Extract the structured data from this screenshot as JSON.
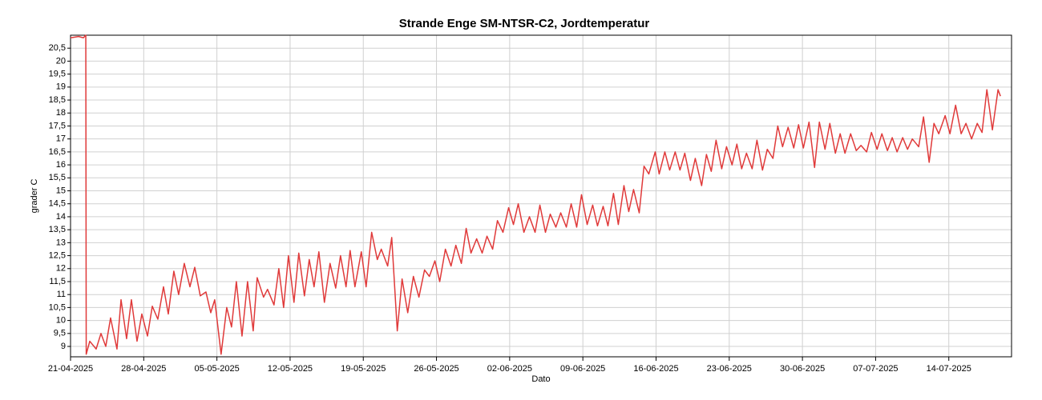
{
  "chart_data": {
    "type": "line",
    "title": "Strande Enge SM-NTSR-C2, Jordtemperatur",
    "x_label": "Dato",
    "y_label": "grader C",
    "xlim": [
      0,
      90
    ],
    "ylim": [
      8.6,
      21.0
    ],
    "xticks": [
      {
        "value": 0,
        "label": "21-04-2025"
      },
      {
        "value": 7,
        "label": "28-04-2025"
      },
      {
        "value": 14,
        "label": "05-05-2025"
      },
      {
        "value": 21,
        "label": "12-05-2025"
      },
      {
        "value": 28,
        "label": "19-05-2025"
      },
      {
        "value": 35,
        "label": "26-05-2025"
      },
      {
        "value": 42,
        "label": "02-06-2025"
      },
      {
        "value": 49,
        "label": "09-06-2025"
      },
      {
        "value": 56,
        "label": "16-06-2025"
      },
      {
        "value": 63,
        "label": "23-06-2025"
      },
      {
        "value": 70,
        "label": "30-06-2025"
      },
      {
        "value": 77,
        "label": "07-07-2025"
      },
      {
        "value": 84,
        "label": "14-07-2025"
      }
    ],
    "yticks": [
      9,
      {
        "value": 9.5,
        "label": "9,5"
      },
      10,
      {
        "value": 10.5,
        "label": "10,5"
      },
      11,
      {
        "value": 11.5,
        "label": "11,5"
      },
      12,
      {
        "value": 12.5,
        "label": "12,5"
      },
      13,
      {
        "value": 13.5,
        "label": "13,5"
      },
      14,
      {
        "value": 14.5,
        "label": "14,5"
      },
      15,
      {
        "value": 15.5,
        "label": "15,5"
      },
      16,
      {
        "value": 16.5,
        "label": "16,5"
      },
      17,
      {
        "value": 17.5,
        "label": "17,5"
      },
      18,
      {
        "value": 18.5,
        "label": "18,5"
      },
      19,
      {
        "value": 19.5,
        "label": "19,5"
      },
      20,
      {
        "value": 20.5,
        "label": "20,5"
      }
    ],
    "grid": true,
    "series": [
      {
        "name": "Jordtemperatur",
        "color": "#e03a3a",
        "x": [
          0,
          0.77,
          1.23,
          1.46,
          1.5,
          1.84,
          2.45,
          2.91,
          3.37,
          3.83,
          4.44,
          4.83,
          5.36,
          5.82,
          6.36,
          6.82,
          7.36,
          7.82,
          8.35,
          8.89,
          9.35,
          9.88,
          10.34,
          10.88,
          11.42,
          11.88,
          12.41,
          12.95,
          13.41,
          13.79,
          14.4,
          14.94,
          15.4,
          15.86,
          16.4,
          16.93,
          17.47,
          17.85,
          18.46,
          18.84,
          19.46,
          19.92,
          20.38,
          20.84,
          21.37,
          21.83,
          22.37,
          22.83,
          23.29,
          23.75,
          24.28,
          24.82,
          25.36,
          25.82,
          26.35,
          26.74,
          27.2,
          27.81,
          28.27,
          28.8,
          29.34,
          29.72,
          30.33,
          30.72,
          31.25,
          31.71,
          32.25,
          32.79,
          33.32,
          33.86,
          34.32,
          34.85,
          35.31,
          35.85,
          36.39,
          36.85,
          37.38,
          37.84,
          38.3,
          38.84,
          39.37,
          39.83,
          40.37,
          40.83,
          41.36,
          41.9,
          42.36,
          42.82,
          43.36,
          43.89,
          44.43,
          44.89,
          45.42,
          45.88,
          46.42,
          46.88,
          47.42,
          47.88,
          48.41,
          48.87,
          49.41,
          49.94,
          50.4,
          50.94,
          51.4,
          51.93,
          52.39,
          52.93,
          53.39,
          53.85,
          54.39,
          54.85,
          55.31,
          55.92,
          56.3,
          56.84,
          57.3,
          57.83,
          58.29,
          58.75,
          59.29,
          59.75,
          60.36,
          60.82,
          61.28,
          61.74,
          62.28,
          62.74,
          63.27,
          63.73,
          64.19,
          64.65,
          65.19,
          65.65,
          66.18,
          66.64,
          67.18,
          67.64,
          68.1,
          68.63,
          69.17,
          69.63,
          70.09,
          70.63,
          71.16,
          71.62,
          72.16,
          72.62,
          73.15,
          73.61,
          74.07,
          74.61,
          75.15,
          75.6,
          76.14,
          76.6,
          77.14,
          77.6,
          78.13,
          78.59,
          79.05,
          79.59,
          80.05,
          80.51,
          81.12,
          81.58,
          82.12,
          82.58,
          83.04,
          83.65,
          84.11,
          84.65,
          85.18,
          85.64,
          86.18,
          86.72,
          87.18,
          87.64,
          88.17,
          88.71,
          88.94
        ],
        "values": [
          20.9,
          20.95,
          20.9,
          21.0,
          8.7,
          9.2,
          8.9,
          9.5,
          9.0,
          10.1,
          8.9,
          10.8,
          9.3,
          10.8,
          9.2,
          10.25,
          9.4,
          10.55,
          10.05,
          11.3,
          10.25,
          11.9,
          11.0,
          12.2,
          11.3,
          12.05,
          10.95,
          11.1,
          10.3,
          10.8,
          8.7,
          10.5,
          9.75,
          11.5,
          9.4,
          11.5,
          9.6,
          11.65,
          10.9,
          11.2,
          10.6,
          12.0,
          10.5,
          12.5,
          10.7,
          12.6,
          10.95,
          12.35,
          11.3,
          12.65,
          10.7,
          12.2,
          11.25,
          12.5,
          11.3,
          12.7,
          11.3,
          12.65,
          11.3,
          13.4,
          12.35,
          12.75,
          12.1,
          13.2,
          9.6,
          11.6,
          10.3,
          11.7,
          10.9,
          11.95,
          11.7,
          12.3,
          11.5,
          12.75,
          12.1,
          12.9,
          12.2,
          13.55,
          12.6,
          13.15,
          12.6,
          13.25,
          12.75,
          13.85,
          13.4,
          14.35,
          13.7,
          14.5,
          13.4,
          14.0,
          13.4,
          14.45,
          13.4,
          14.1,
          13.6,
          14.15,
          13.6,
          14.5,
          13.6,
          14.85,
          13.7,
          14.45,
          13.65,
          14.4,
          13.65,
          14.9,
          13.7,
          15.2,
          14.2,
          15.05,
          14.15,
          15.95,
          15.65,
          16.5,
          15.65,
          16.5,
          15.8,
          16.5,
          15.8,
          16.45,
          15.4,
          16.25,
          15.2,
          16.4,
          15.75,
          16.95,
          15.85,
          16.7,
          16.0,
          16.8,
          15.85,
          16.45,
          15.85,
          16.95,
          15.8,
          16.6,
          16.25,
          17.5,
          16.7,
          17.45,
          16.65,
          17.55,
          16.65,
          17.65,
          15.9,
          17.65,
          16.6,
          17.6,
          16.45,
          17.2,
          16.45,
          17.2,
          16.55,
          16.75,
          16.5,
          17.25,
          16.6,
          17.2,
          16.55,
          17.05,
          16.5,
          17.05,
          16.6,
          17.0,
          16.7,
          17.85,
          16.1,
          17.6,
          17.2,
          17.9,
          17.2,
          18.3,
          17.2,
          17.6,
          17.0,
          17.6,
          17.25,
          18.9,
          17.35,
          18.9,
          18.65
        ]
      }
    ]
  }
}
